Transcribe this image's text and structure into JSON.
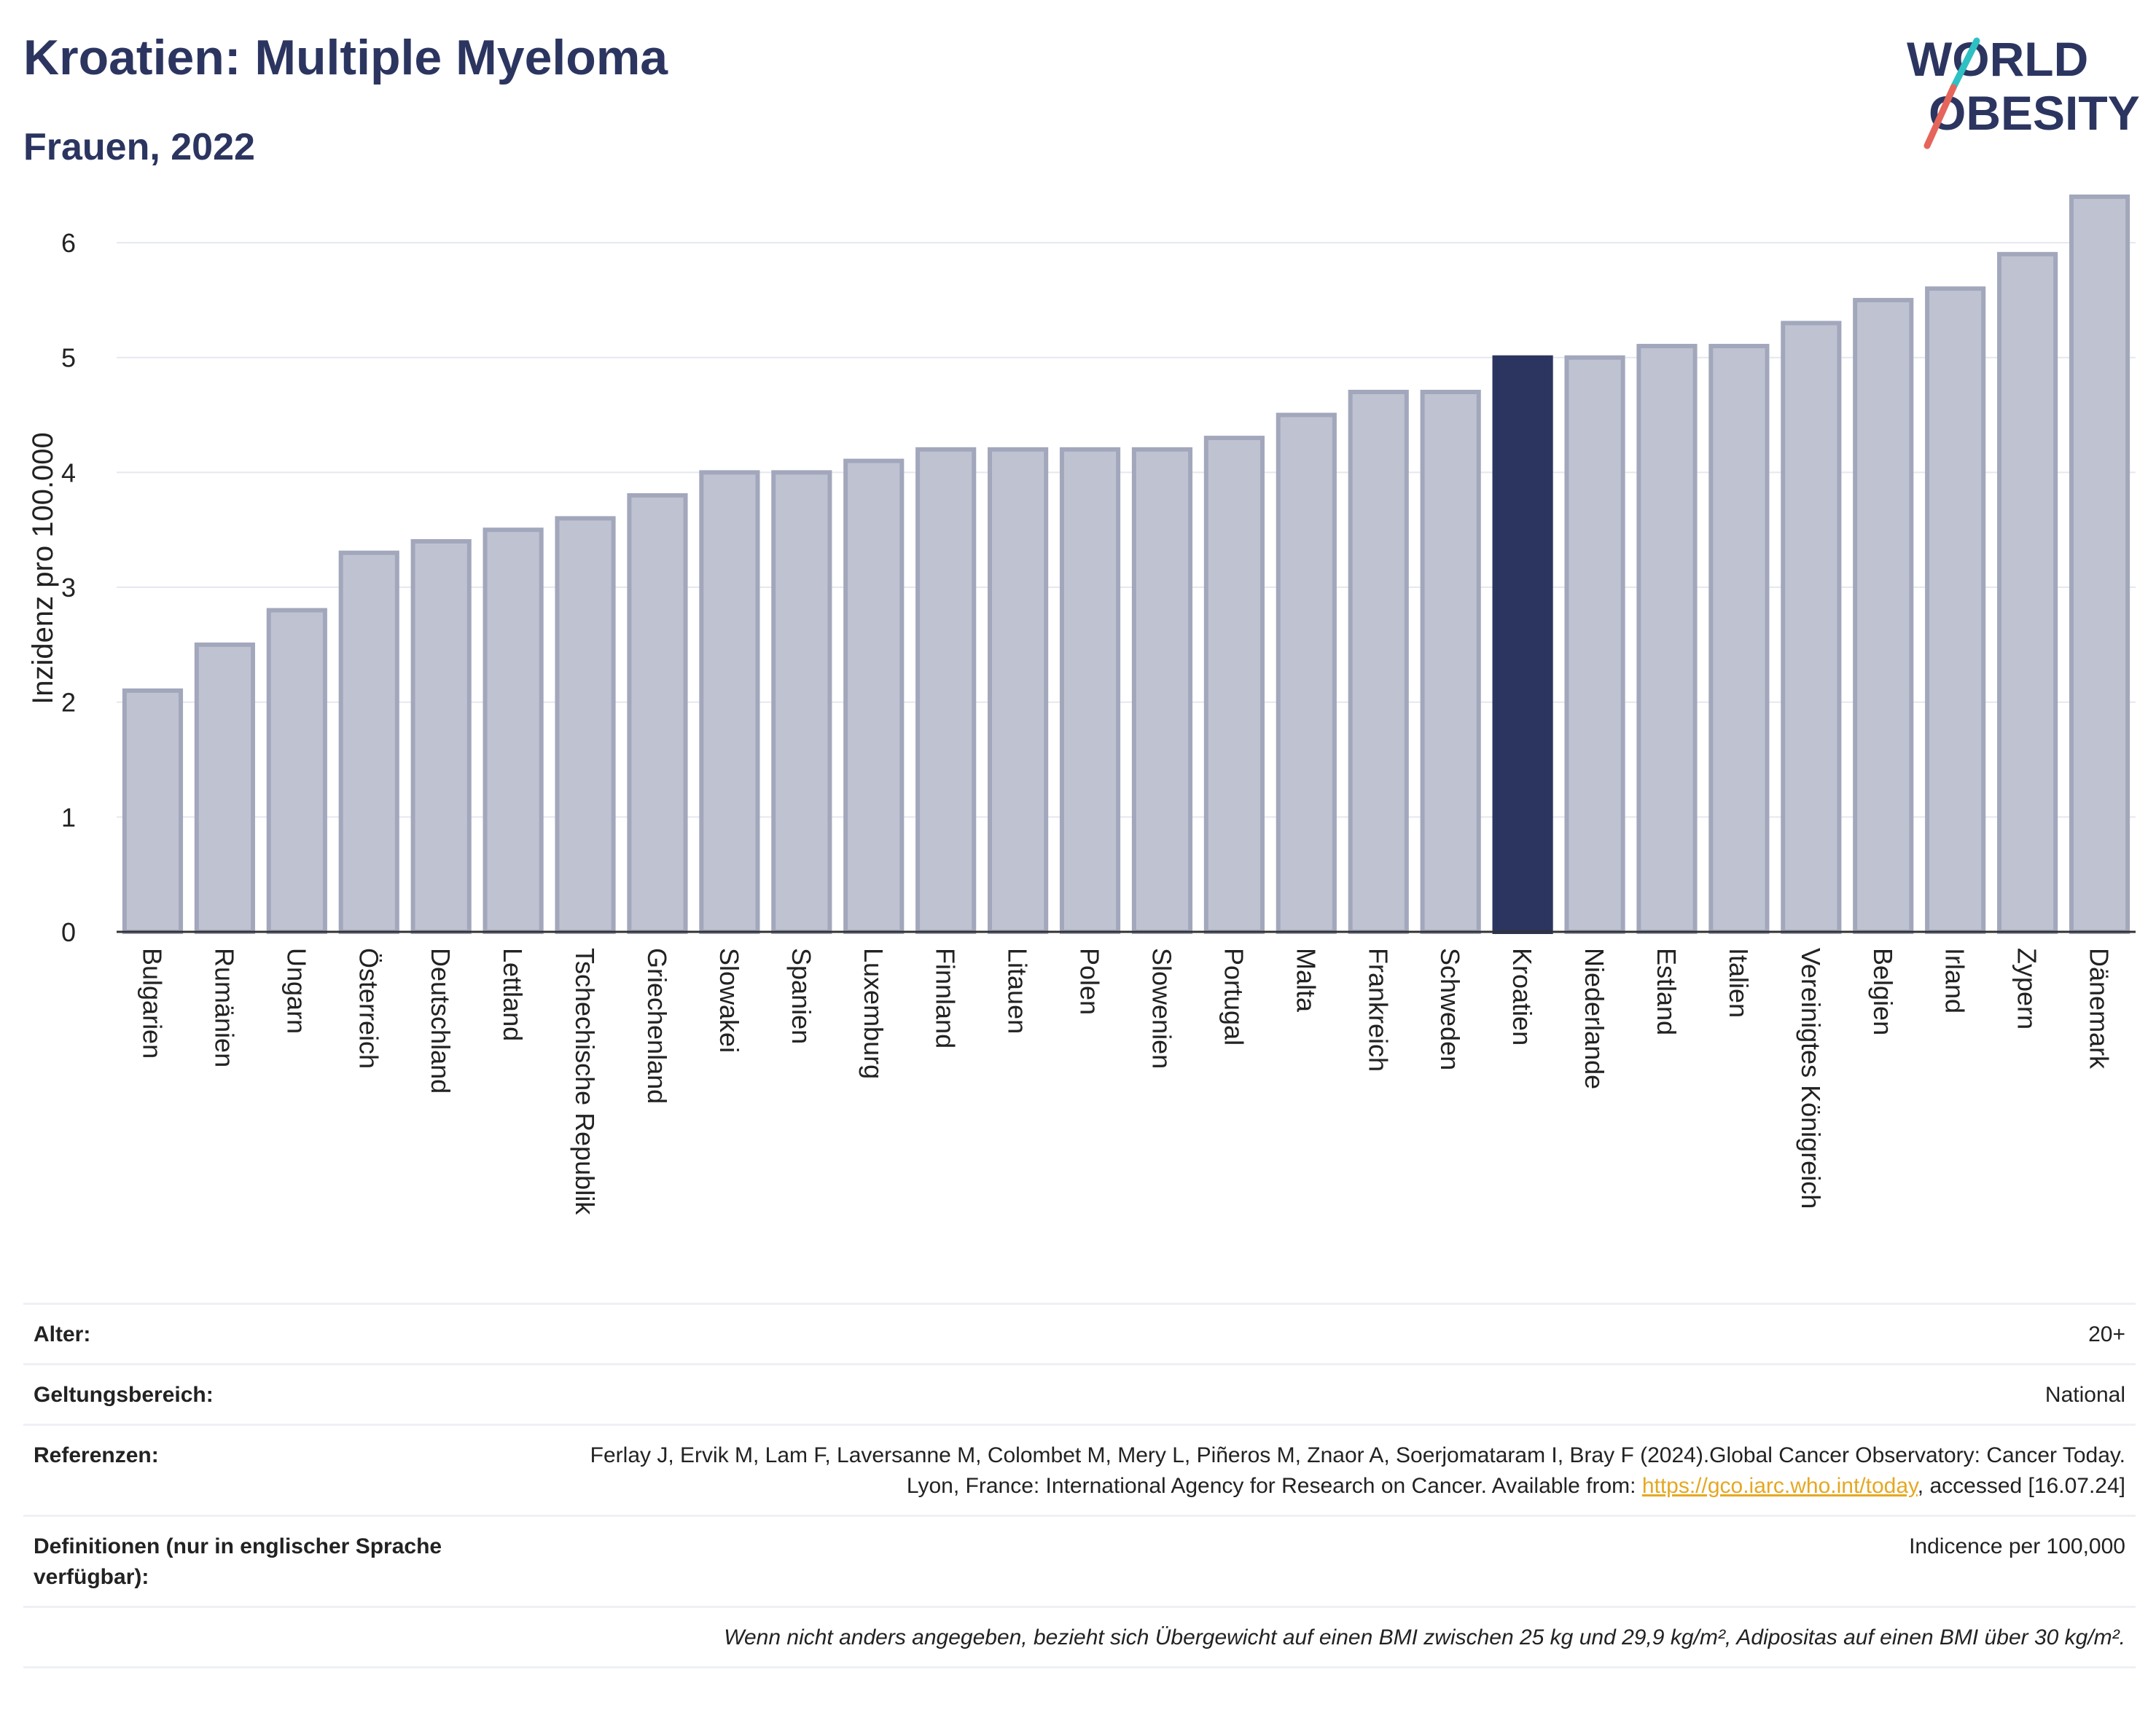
{
  "header": {
    "title": "Kroatien: Multiple Myeloma",
    "subtitle": "Frauen, 2022"
  },
  "logo": {
    "line1": "WORLD",
    "line2": "OBESITY",
    "slash_colors": [
      "#2fc0c4",
      "#e5655a"
    ]
  },
  "chart_data": {
    "type": "bar",
    "title": "Kroatien: Multiple Myeloma",
    "subtitle": "Frauen, 2022",
    "xlabel": "",
    "ylabel": "Inzidenz pro 100.000",
    "ylim": [
      0,
      6.4
    ],
    "yticks": [
      0,
      1,
      2,
      3,
      4,
      5,
      6
    ],
    "grid": true,
    "highlight": "Kroatien",
    "colors": {
      "default": "#bfc3d1",
      "default_edge": "#a2a7bc",
      "highlight": "#2b3560"
    },
    "categories": [
      "Bulgarien",
      "Rumänien",
      "Ungarn",
      "Österreich",
      "Deutschland",
      "Lettland",
      "Tschechische Republik",
      "Griechenland",
      "Slowakei",
      "Spanien",
      "Luxemburg",
      "Finnland",
      "Litauen",
      "Polen",
      "Slowenien",
      "Portugal",
      "Malta",
      "Frankreich",
      "Schweden",
      "Kroatien",
      "Niederlande",
      "Estland",
      "Italien",
      "Vereinigtes Königreich",
      "Belgien",
      "Irland",
      "Zypern",
      "Dänemark"
    ],
    "values": [
      2.1,
      2.5,
      2.8,
      3.3,
      3.4,
      3.5,
      3.6,
      3.8,
      4.0,
      4.0,
      4.1,
      4.2,
      4.2,
      4.2,
      4.2,
      4.3,
      4.5,
      4.7,
      4.7,
      5.0,
      5.0,
      5.1,
      5.1,
      5.3,
      5.5,
      5.6,
      5.9,
      6.4
    ]
  },
  "info": {
    "age_label": "Alter:",
    "age_value": "20+",
    "scope_label": "Geltungsbereich:",
    "scope_value": "National",
    "refs_label": "Referenzen:",
    "refs_text_before": "Ferlay J, Ervik M, Lam F, Laversanne M, Colombet M, Mery L, Piñeros M, Znaor A, Soerjomataram I, Bray F (2024).Global Cancer Observatory: Cancer Today. Lyon, France: International Agency for Research on Cancer. Available from: ",
    "refs_link": "https://gco.iarc.who.int/today",
    "refs_text_after": ", accessed [16.07.24]",
    "defs_label": "Definitionen (nur in englischer Sprache verfügbar):",
    "defs_value": "Indicence per 100,000",
    "note": "Wenn nicht anders angegeben, bezieht sich Übergewicht auf einen BMI zwischen 25 kg und 29,9 kg/m², Adipositas auf einen BMI über 30 kg/m²."
  }
}
